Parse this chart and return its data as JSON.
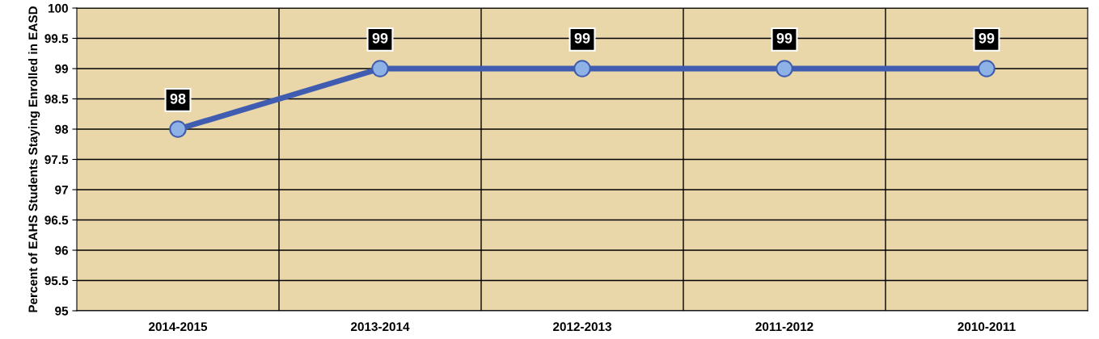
{
  "chart_data": {
    "type": "line",
    "ylabel": "Percent of EAHS Students Staying Enrolled in EASD",
    "categories": [
      "2014-2015",
      "2013-2014",
      "2012-2013",
      "2011-2012",
      "2010-2011"
    ],
    "series": [
      {
        "color": "#3f5cb0",
        "values": [
          98,
          99,
          99,
          99,
          99
        ]
      }
    ],
    "ylim": [
      95,
      100
    ],
    "yticks": [
      95,
      95.5,
      96,
      96.5,
      97,
      97.5,
      98,
      98.5,
      99,
      99.5,
      100
    ],
    "grid": true,
    "marker": "circle",
    "line_style": "solid",
    "data_labels": true,
    "legend": false
  }
}
